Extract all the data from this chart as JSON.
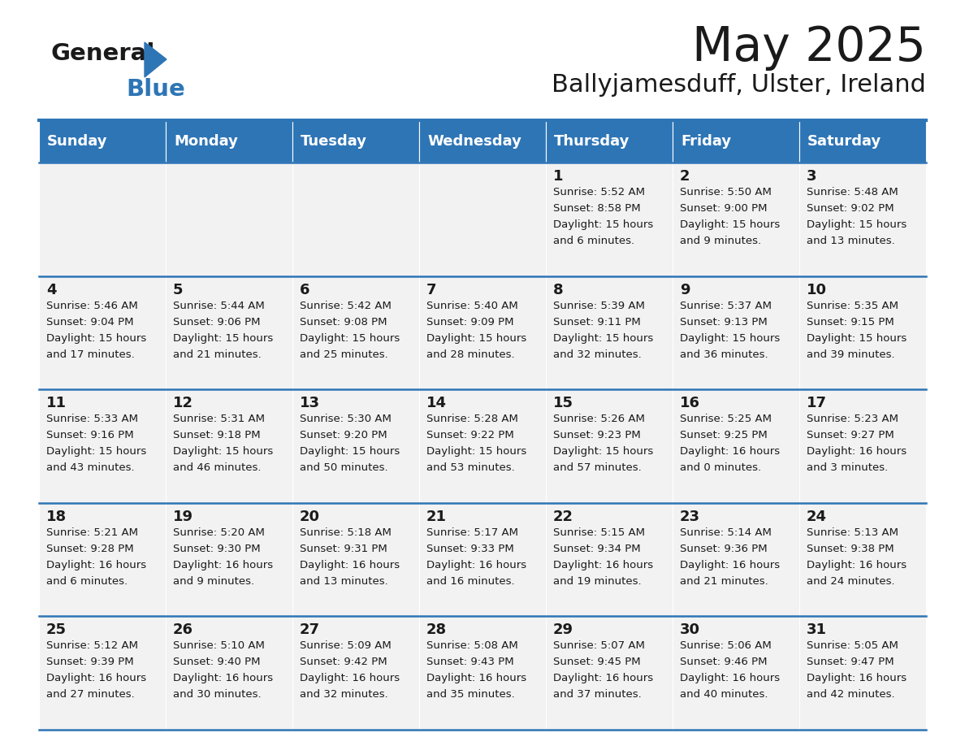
{
  "title": "May 2025",
  "subtitle": "Ballyjamesduff, Ulster, Ireland",
  "header_bg": "#2E75B6",
  "header_text": "#FFFFFF",
  "cell_bg": "#F2F2F2",
  "cell_border_color": "#2E75B6",
  "text_color": "#1a1a1a",
  "day_names": [
    "Sunday",
    "Monday",
    "Tuesday",
    "Wednesday",
    "Thursday",
    "Friday",
    "Saturday"
  ],
  "calendar_data": [
    [
      null,
      null,
      null,
      null,
      {
        "day": "1",
        "sunrise": "5:52 AM",
        "sunset": "8:58 PM",
        "daylight": "15 hours",
        "daylight2": "and 6 minutes."
      },
      {
        "day": "2",
        "sunrise": "5:50 AM",
        "sunset": "9:00 PM",
        "daylight": "15 hours",
        "daylight2": "and 9 minutes."
      },
      {
        "day": "3",
        "sunrise": "5:48 AM",
        "sunset": "9:02 PM",
        "daylight": "15 hours",
        "daylight2": "and 13 minutes."
      }
    ],
    [
      {
        "day": "4",
        "sunrise": "5:46 AM",
        "sunset": "9:04 PM",
        "daylight": "15 hours",
        "daylight2": "and 17 minutes."
      },
      {
        "day": "5",
        "sunrise": "5:44 AM",
        "sunset": "9:06 PM",
        "daylight": "15 hours",
        "daylight2": "and 21 minutes."
      },
      {
        "day": "6",
        "sunrise": "5:42 AM",
        "sunset": "9:08 PM",
        "daylight": "15 hours",
        "daylight2": "and 25 minutes."
      },
      {
        "day": "7",
        "sunrise": "5:40 AM",
        "sunset": "9:09 PM",
        "daylight": "15 hours",
        "daylight2": "and 28 minutes."
      },
      {
        "day": "8",
        "sunrise": "5:39 AM",
        "sunset": "9:11 PM",
        "daylight": "15 hours",
        "daylight2": "and 32 minutes."
      },
      {
        "day": "9",
        "sunrise": "5:37 AM",
        "sunset": "9:13 PM",
        "daylight": "15 hours",
        "daylight2": "and 36 minutes."
      },
      {
        "day": "10",
        "sunrise": "5:35 AM",
        "sunset": "9:15 PM",
        "daylight": "15 hours",
        "daylight2": "and 39 minutes."
      }
    ],
    [
      {
        "day": "11",
        "sunrise": "5:33 AM",
        "sunset": "9:16 PM",
        "daylight": "15 hours",
        "daylight2": "and 43 minutes."
      },
      {
        "day": "12",
        "sunrise": "5:31 AM",
        "sunset": "9:18 PM",
        "daylight": "15 hours",
        "daylight2": "and 46 minutes."
      },
      {
        "day": "13",
        "sunrise": "5:30 AM",
        "sunset": "9:20 PM",
        "daylight": "15 hours",
        "daylight2": "and 50 minutes."
      },
      {
        "day": "14",
        "sunrise": "5:28 AM",
        "sunset": "9:22 PM",
        "daylight": "15 hours",
        "daylight2": "and 53 minutes."
      },
      {
        "day": "15",
        "sunrise": "5:26 AM",
        "sunset": "9:23 PM",
        "daylight": "15 hours",
        "daylight2": "and 57 minutes."
      },
      {
        "day": "16",
        "sunrise": "5:25 AM",
        "sunset": "9:25 PM",
        "daylight": "16 hours",
        "daylight2": "and 0 minutes."
      },
      {
        "day": "17",
        "sunrise": "5:23 AM",
        "sunset": "9:27 PM",
        "daylight": "16 hours",
        "daylight2": "and 3 minutes."
      }
    ],
    [
      {
        "day": "18",
        "sunrise": "5:21 AM",
        "sunset": "9:28 PM",
        "daylight": "16 hours",
        "daylight2": "and 6 minutes."
      },
      {
        "day": "19",
        "sunrise": "5:20 AM",
        "sunset": "9:30 PM",
        "daylight": "16 hours",
        "daylight2": "and 9 minutes."
      },
      {
        "day": "20",
        "sunrise": "5:18 AM",
        "sunset": "9:31 PM",
        "daylight": "16 hours",
        "daylight2": "and 13 minutes."
      },
      {
        "day": "21",
        "sunrise": "5:17 AM",
        "sunset": "9:33 PM",
        "daylight": "16 hours",
        "daylight2": "and 16 minutes."
      },
      {
        "day": "22",
        "sunrise": "5:15 AM",
        "sunset": "9:34 PM",
        "daylight": "16 hours",
        "daylight2": "and 19 minutes."
      },
      {
        "day": "23",
        "sunrise": "5:14 AM",
        "sunset": "9:36 PM",
        "daylight": "16 hours",
        "daylight2": "and 21 minutes."
      },
      {
        "day": "24",
        "sunrise": "5:13 AM",
        "sunset": "9:38 PM",
        "daylight": "16 hours",
        "daylight2": "and 24 minutes."
      }
    ],
    [
      {
        "day": "25",
        "sunrise": "5:12 AM",
        "sunset": "9:39 PM",
        "daylight": "16 hours",
        "daylight2": "and 27 minutes."
      },
      {
        "day": "26",
        "sunrise": "5:10 AM",
        "sunset": "9:40 PM",
        "daylight": "16 hours",
        "daylight2": "and 30 minutes."
      },
      {
        "day": "27",
        "sunrise": "5:09 AM",
        "sunset": "9:42 PM",
        "daylight": "16 hours",
        "daylight2": "and 32 minutes."
      },
      {
        "day": "28",
        "sunrise": "5:08 AM",
        "sunset": "9:43 PM",
        "daylight": "16 hours",
        "daylight2": "and 35 minutes."
      },
      {
        "day": "29",
        "sunrise": "5:07 AM",
        "sunset": "9:45 PM",
        "daylight": "16 hours",
        "daylight2": "and 37 minutes."
      },
      {
        "day": "30",
        "sunrise": "5:06 AM",
        "sunset": "9:46 PM",
        "daylight": "16 hours",
        "daylight2": "and 40 minutes."
      },
      {
        "day": "31",
        "sunrise": "5:05 AM",
        "sunset": "9:47 PM",
        "daylight": "16 hours",
        "daylight2": "and 42 minutes."
      }
    ]
  ]
}
